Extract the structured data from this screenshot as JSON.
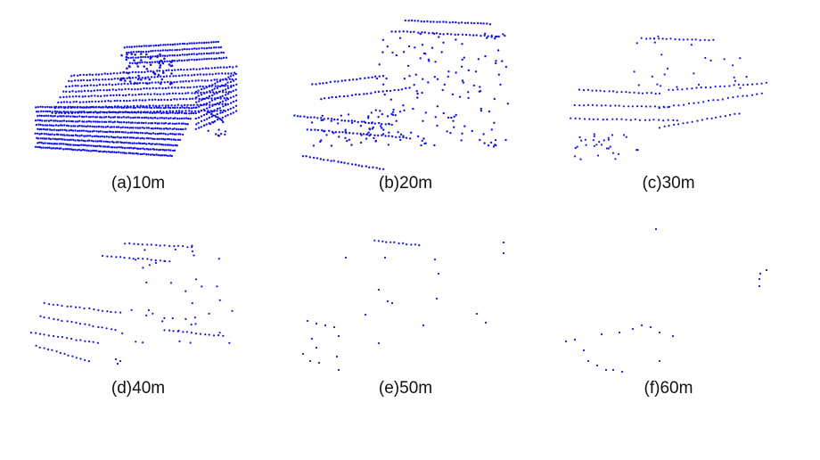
{
  "colors": {
    "background": "#ffffff",
    "points": "#1414e6",
    "caption": "#111111"
  },
  "panels": [
    {
      "id": "a",
      "caption": "(a)10m"
    },
    {
      "id": "b",
      "caption": "(b)20m"
    },
    {
      "id": "c",
      "caption": "(c)30m"
    },
    {
      "id": "d",
      "caption": "(d)40m"
    },
    {
      "id": "e",
      "caption": "(e)50m"
    },
    {
      "id": "f",
      "caption": "(f)60m"
    }
  ]
}
